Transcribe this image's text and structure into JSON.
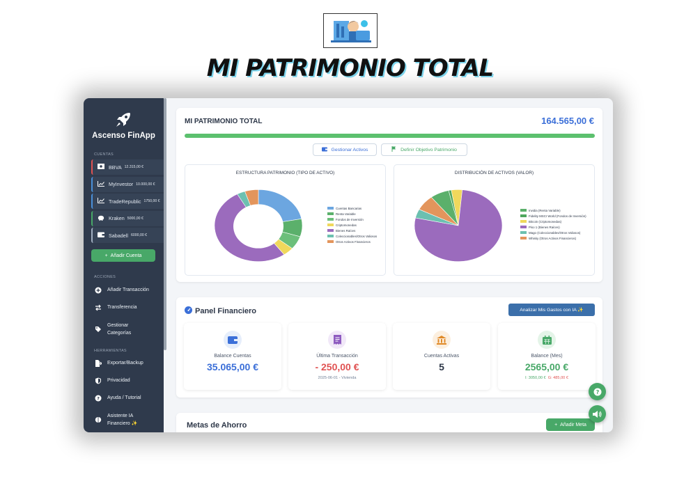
{
  "page_heading": "MI PATRIMONIO TOTAL",
  "sidebar": {
    "app_name": "Ascenso FinApp",
    "accounts_section": "CUENTAS",
    "accounts": [
      {
        "name": "BBVA",
        "balance": "12.315,00 €",
        "color": "#e05252",
        "icon": "money-bill-icon"
      },
      {
        "name": "MyInvestor",
        "balance": "10.000,00 €",
        "color": "#4a90d9",
        "icon": "line-chart-icon"
      },
      {
        "name": "TradeRepublic",
        "balance": "1750,00 €",
        "color": "#4a90d9",
        "icon": "line-chart-icon"
      },
      {
        "name": "Kraken",
        "balance": "5000,00 €",
        "color": "#48a868",
        "icon": "piggy-bank-icon"
      },
      {
        "name": "Sabadell",
        "balance": "6000,00 €",
        "color": "#a0aec0",
        "icon": "wallet-icon"
      }
    ],
    "add_account_label": "Añadir Cuenta",
    "actions_section": "ACCIONES",
    "actions": [
      {
        "label": "Añadir Transacción"
      },
      {
        "label": "Transferencia"
      },
      {
        "label": "Gestionar Categorías"
      }
    ],
    "tools_section": "HERRAMIENTAS",
    "tools": [
      {
        "label": "Exportar/Backup"
      },
      {
        "label": "Privacidad"
      },
      {
        "label": "Ayuda / Tutorial"
      },
      {
        "label": "Asistente IA Financiero ✨"
      }
    ]
  },
  "patrimonio": {
    "title": "MI PATRIMONIO TOTAL",
    "total": "164.565,00 €",
    "progress": 1.0,
    "manage_assets_label": "Gestionar Activos",
    "define_goal_label": "Definir Objetivo Patrimonio"
  },
  "chart_data": [
    {
      "type": "pie",
      "title": "ESTRUCTURA PATRIMONIO (TIPO DE ACTIVO)",
      "donut": true,
      "legend_position": "right",
      "categories": [
        "Cuentas Bancarias",
        "Renta Variable",
        "Fondos de Inversión",
        "Criptomonedas",
        "Bienes Raíces",
        "Coleccionables/Otros Valiosos",
        "Otros Activos Financieros"
      ],
      "values": [
        22,
        8,
        6,
        4,
        52,
        3,
        5
      ],
      "colors": [
        "#6ca6e0",
        "#5bb06b",
        "#6cbf7a",
        "#f0d85c",
        "#9b6bbd",
        "#6cc0b0",
        "#e3955c"
      ]
    },
    {
      "type": "pie",
      "title": "DISTRIBUCIÓN DE ACTIVOS (VALOR)",
      "donut": false,
      "legend_position": "right",
      "categories": [
        "Invidia (Renta Variable)",
        "Fidelity MSCI World (Fondos de Inversión)",
        "Bitcoin (Criptomonedas)",
        "Piso 1 (Bienes Raíces)",
        "Mago (Coleccionables/Otros Valiosos)",
        "Whisky (Otros Activos Financieros)"
      ],
      "values": [
        7,
        1,
        4,
        77,
        4,
        7
      ],
      "colors": [
        "#5bb06b",
        "#4ea65e",
        "#f0d85c",
        "#9b6bbd",
        "#6cc0b0",
        "#e3955c"
      ]
    }
  ],
  "panel": {
    "title": "Panel Financiero",
    "ia_button": "Analizar Mis Gastos con IA ✨",
    "stats": [
      {
        "label": "Balance Cuentas",
        "value": "35.065,00 €",
        "sub": "",
        "color": "#3b6fd8",
        "icon": "wallet-icon",
        "icon_color": "#3b6fd8",
        "icon_bg": "#e6eefb"
      },
      {
        "label": "Última Transacción",
        "value": "- 250,00 €",
        "sub": "2025-06-01 - Vivienda",
        "color": "#e05252",
        "icon": "receipt-icon",
        "icon_color": "#8e5bc0",
        "icon_bg": "#f1e8f8"
      },
      {
        "label": "Cuentas Activas",
        "value": "5",
        "sub": "",
        "color": "#2d3748",
        "icon": "bank-icon",
        "icon_color": "#e08a28",
        "icon_bg": "#fcefdf"
      },
      {
        "label": "Balance (Mes)",
        "value": "2565,00 €",
        "income": "I: 3050,00 €",
        "expense": "G: 485,00 €",
        "color": "#48a868",
        "icon": "calendar-icon",
        "icon_color": "#48a868",
        "icon_bg": "#e4f4e8"
      }
    ]
  },
  "goals": {
    "title": "Metas de Ahorro",
    "add_label": "Añadir Meta"
  }
}
